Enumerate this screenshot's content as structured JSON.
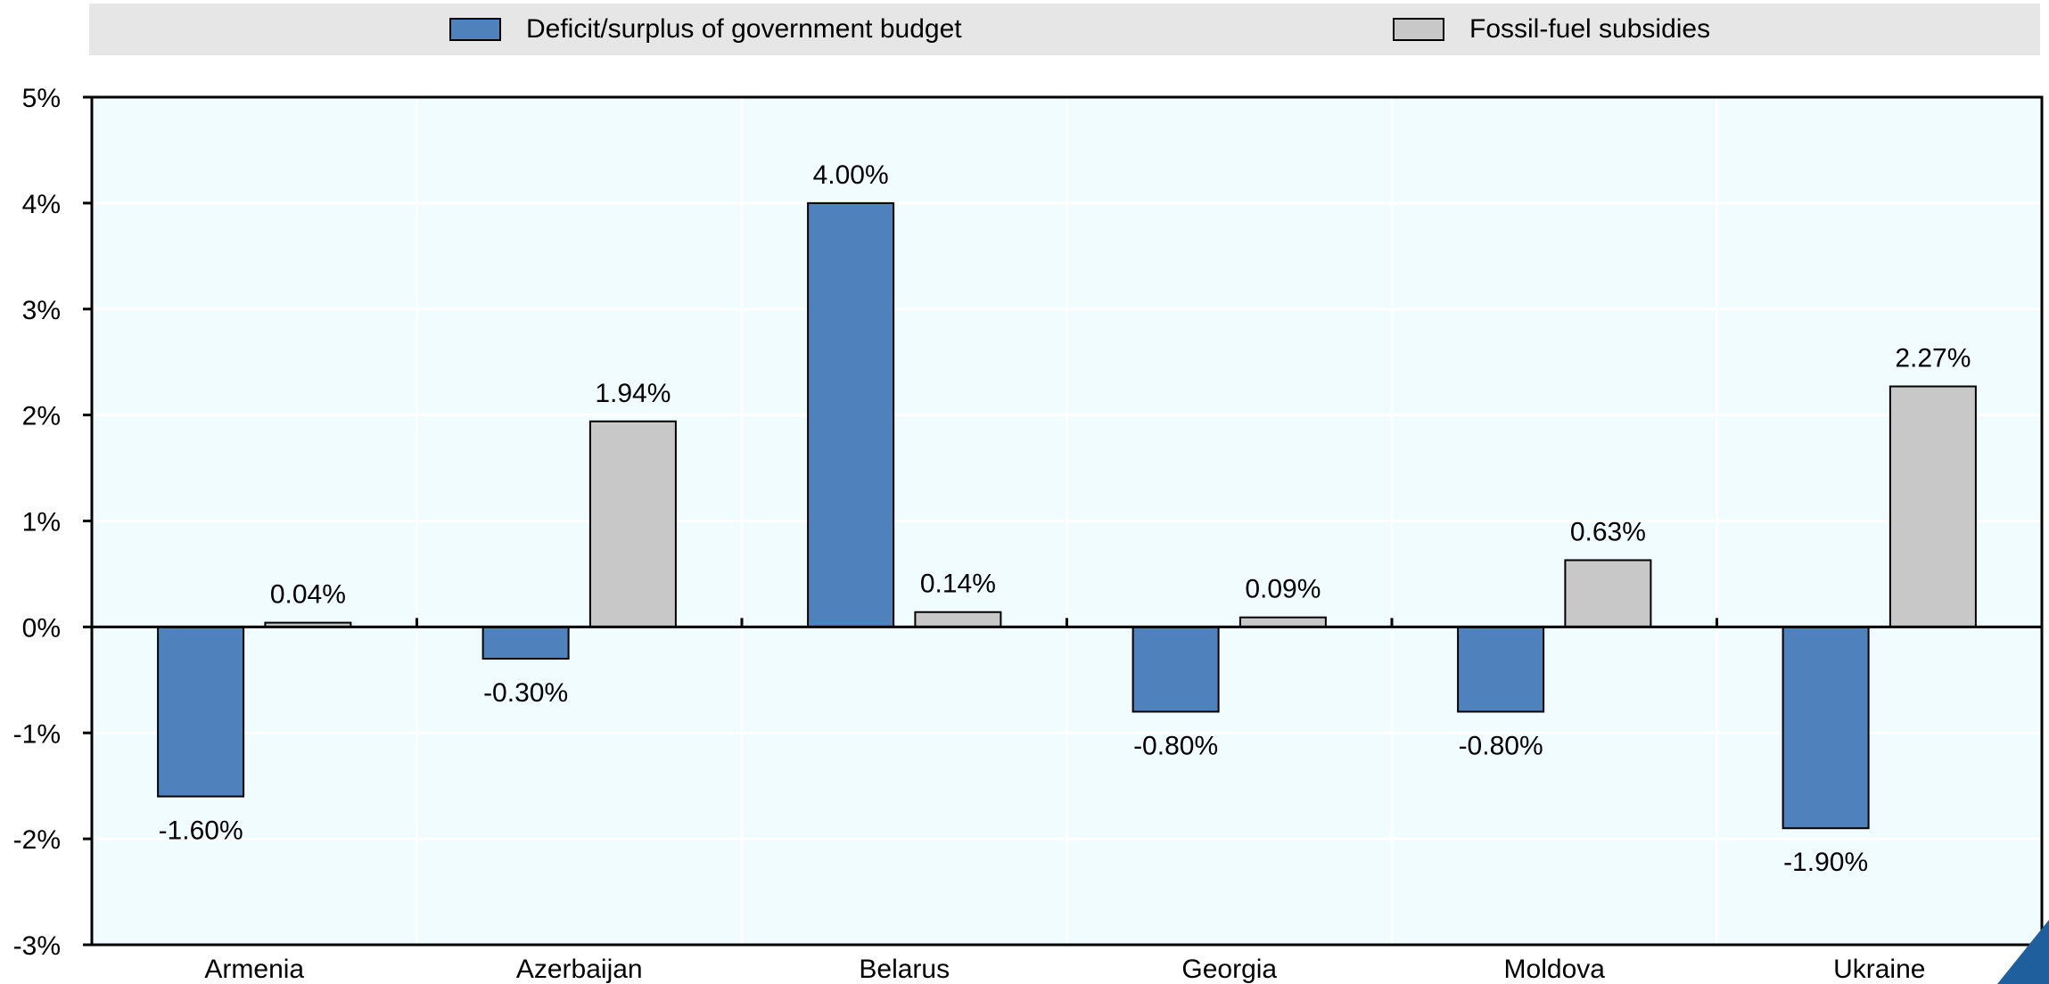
{
  "colors": {
    "deficit": "#4f81bd",
    "subsidies": "#c8c8c8",
    "plot_background": "#f0fcff",
    "legend_background": "#e6e6e6"
  },
  "chart_data": {
    "type": "bar",
    "categories": [
      "Armenia",
      "Azerbaijan",
      "Belarus",
      "Georgia",
      "Moldova",
      "Ukraine"
    ],
    "series": [
      {
        "name": "Deficit/surplus of government budget",
        "values": [
          -1.6,
          -0.3,
          4.0,
          -0.8,
          -0.8,
          -1.9
        ],
        "labels": [
          "-1.60%",
          "-0.30%",
          "4.00%",
          "-0.80%",
          "-0.80%",
          "-1.90%"
        ]
      },
      {
        "name": "Fossil-fuel subsidies",
        "values": [
          0.04,
          1.94,
          0.14,
          0.09,
          0.63,
          2.27
        ],
        "labels": [
          "0.04%",
          "1.94%",
          "0.14%",
          "0.09%",
          "0.63%",
          "2.27%"
        ]
      }
    ],
    "ylim": [
      -3,
      5
    ],
    "yticks": [
      5,
      4,
      3,
      2,
      1,
      0,
      -1,
      -2,
      -3
    ],
    "ytick_labels": [
      "5%",
      "4%",
      "3%",
      "2%",
      "1%",
      "0%",
      "-1%",
      "-2%",
      "-3%"
    ],
    "legend_position": "top",
    "grid": true
  }
}
